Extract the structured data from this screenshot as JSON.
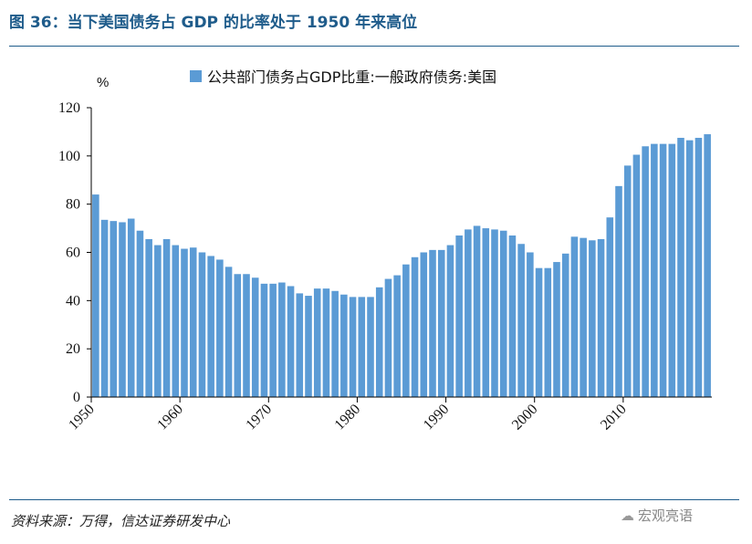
{
  "header": {
    "title": "图 36：当下美国债务占 GDP 的比率处于 1950 年来高位"
  },
  "footer": {
    "source": "资料来源：万得，信达证券研发中心",
    "watermark": "宏观亮语",
    "watermark_icon": "wechat-icon"
  },
  "colors": {
    "bar": "#5b9bd5",
    "accent": "#1f5c8b"
  },
  "chart_data": {
    "type": "bar",
    "title": "",
    "xlabel": "",
    "ylabel": "%",
    "ylim": [
      0,
      120
    ],
    "yticks": [
      0,
      20,
      40,
      60,
      80,
      100,
      120
    ],
    "xticks": [
      "1950",
      "1960",
      "1970",
      "1980",
      "1990",
      "2000",
      "2010"
    ],
    "legend_position": "top-center",
    "grid": false,
    "series": [
      {
        "name": "公共部门债务占GDP比重:一般政府债务:美国",
        "categories": [
          "1950",
          "1951",
          "1952",
          "1953",
          "1954",
          "1955",
          "1956",
          "1957",
          "1958",
          "1959",
          "1960",
          "1961",
          "1962",
          "1963",
          "1964",
          "1965",
          "1966",
          "1967",
          "1968",
          "1969",
          "1970",
          "1971",
          "1972",
          "1973",
          "1974",
          "1975",
          "1976",
          "1977",
          "1978",
          "1979",
          "1980",
          "1981",
          "1982",
          "1983",
          "1984",
          "1985",
          "1986",
          "1987",
          "1988",
          "1989",
          "1990",
          "1991",
          "1992",
          "1993",
          "1994",
          "1995",
          "1996",
          "1997",
          "1998",
          "1999",
          "2000",
          "2001",
          "2002",
          "2003",
          "2004",
          "2005",
          "2006",
          "2007",
          "2008",
          "2009",
          "2010",
          "2011",
          "2012",
          "2013",
          "2014",
          "2015",
          "2016",
          "2017",
          "2018",
          "2019"
        ],
        "values": [
          84,
          73.5,
          73,
          72.5,
          74,
          69,
          65.5,
          63,
          65.5,
          63,
          61.5,
          62,
          60,
          58.5,
          57,
          54,
          51,
          51,
          49.5,
          47,
          47,
          47.5,
          46,
          43,
          42,
          45,
          45,
          44,
          42.5,
          41.5,
          41.5,
          41.5,
          45.5,
          49,
          50.5,
          55,
          58,
          60,
          61,
          61,
          63,
          67,
          69.5,
          71,
          70,
          69.5,
          69,
          67,
          63.5,
          60,
          53.5,
          53.5,
          56,
          59.5,
          66.5,
          66,
          65,
          65.5,
          74.5,
          87.5,
          96,
          100.5,
          104,
          105,
          105,
          105,
          107.5,
          106.5,
          107.5,
          109
        ]
      }
    ]
  }
}
